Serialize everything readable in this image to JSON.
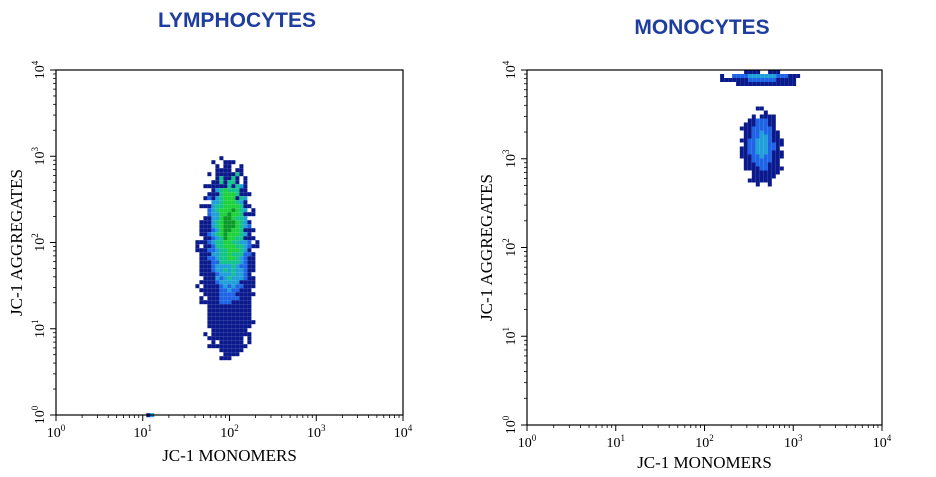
{
  "chart_data": [
    {
      "type": "scatter",
      "subtype": "flow-cytometry-density",
      "title": "LYMPHOCYTES",
      "xlabel": "JC-1 MONOMERS",
      "ylabel": "JC-1 AGGREGATES",
      "xscale": "log",
      "yscale": "log",
      "xlim": [
        1,
        10000
      ],
      "ylim": [
        1,
        10000
      ],
      "ticks": [
        {
          "base": "10",
          "exp": "0"
        },
        {
          "base": "10",
          "exp": "1"
        },
        {
          "base": "10",
          "exp": "2"
        },
        {
          "base": "10",
          "exp": "3"
        },
        {
          "base": "10",
          "exp": "4"
        }
      ],
      "grid": false,
      "density_colors": [
        "#0a1a8c",
        "#1e64e6",
        "#1fa0d8",
        "#12c48c",
        "#1ed23c",
        "#0b9a2a"
      ],
      "populations": [
        {
          "center": [
            95,
            180
          ],
          "x_range": [
            45,
            180
          ],
          "y_range": [
            5,
            900
          ],
          "peak": "green"
        },
        {
          "center": [
            12,
            1.02
          ],
          "x_range": [
            11,
            14
          ],
          "y_range": [
            1,
            1.05
          ],
          "peak": "dark-blue"
        }
      ]
    },
    {
      "type": "scatter",
      "subtype": "flow-cytometry-density",
      "title": "MONOCYTES",
      "xlabel": "JC-1 MONOMERS",
      "ylabel": "JC-1 AGGREGATES",
      "xscale": "log",
      "yscale": "log",
      "xlim": [
        1,
        10000
      ],
      "ylim": [
        1,
        10000
      ],
      "ticks": [
        {
          "base": "10",
          "exp": "0"
        },
        {
          "base": "10",
          "exp": "1"
        },
        {
          "base": "10",
          "exp": "2"
        },
        {
          "base": "10",
          "exp": "3"
        },
        {
          "base": "10",
          "exp": "4"
        }
      ],
      "grid": false,
      "density_colors": [
        "#0a1a8c",
        "#1e64e6",
        "#1fa0d8"
      ],
      "populations": [
        {
          "center": [
            420,
            1500
          ],
          "x_range": [
            250,
            700
          ],
          "y_range": [
            550,
            3500
          ],
          "peak": "light-blue"
        },
        {
          "center": [
            420,
            9000
          ],
          "x_range": [
            150,
            1200
          ],
          "y_range": [
            7000,
            10000
          ],
          "peak": "blue"
        }
      ]
    }
  ]
}
